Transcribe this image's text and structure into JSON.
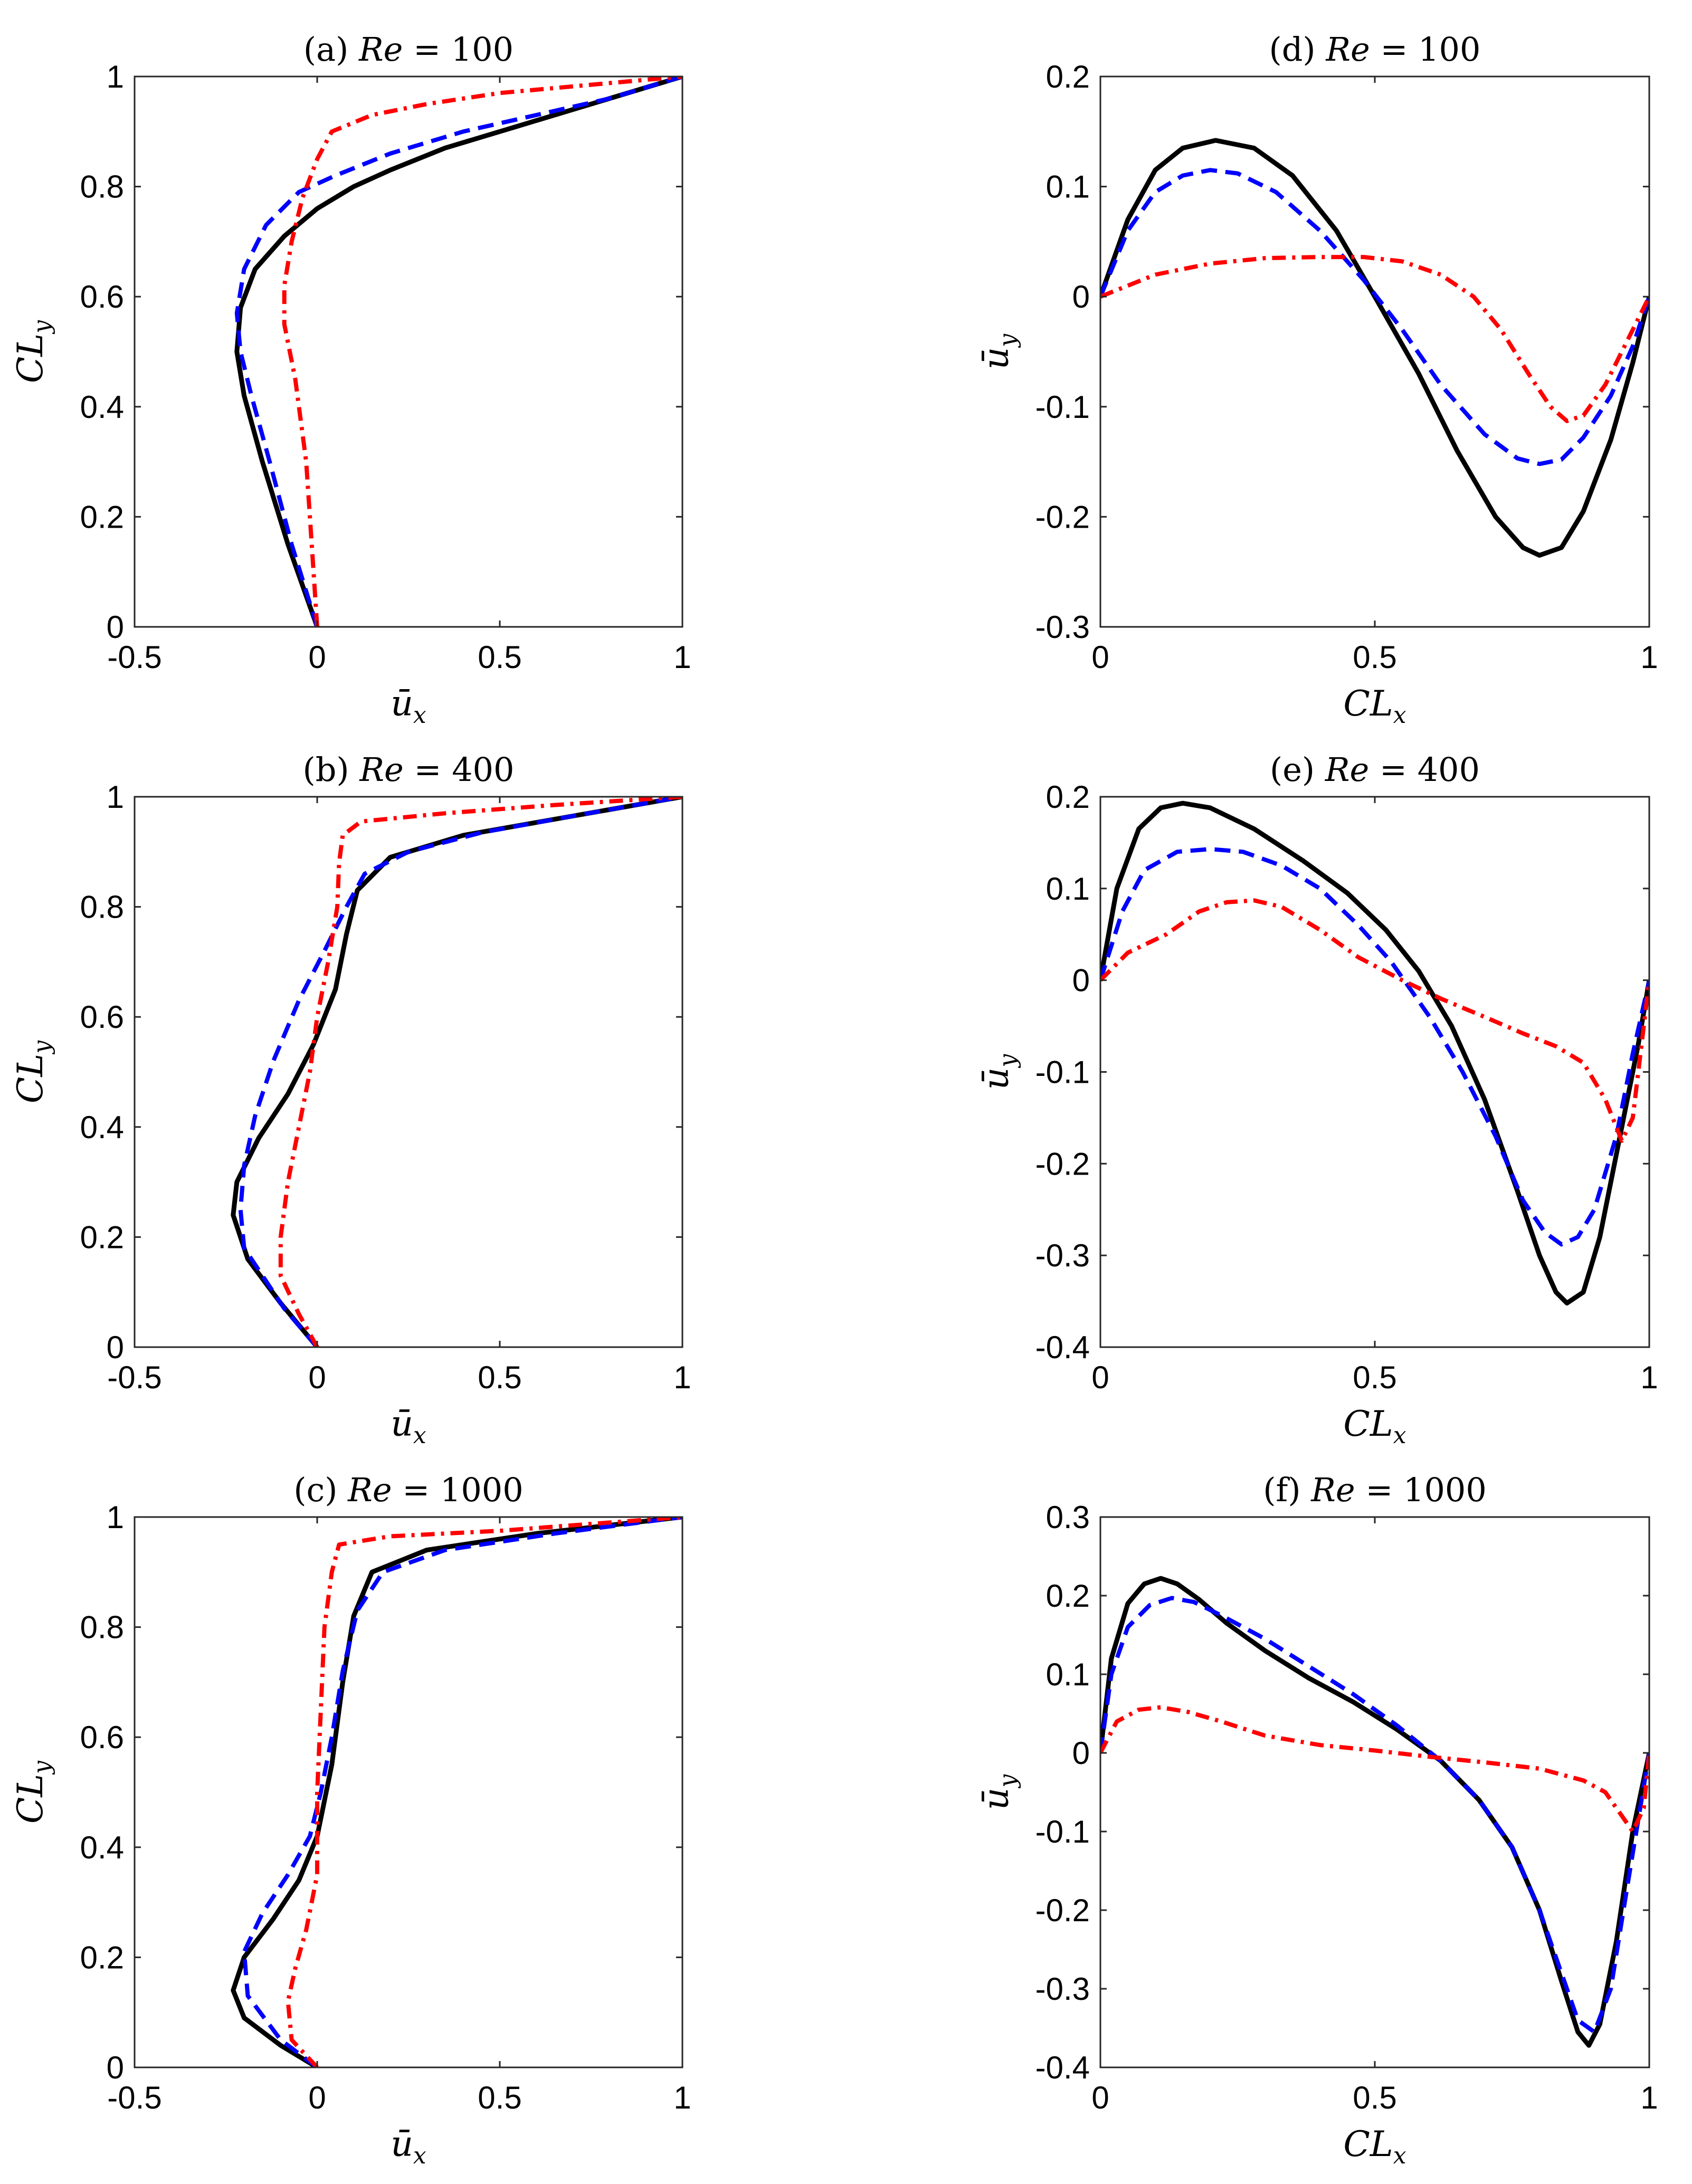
{
  "colors": {
    "solid": "#000000",
    "dashed": "#0000ff",
    "dashdot": "#ff0000",
    "axes": "#262626"
  },
  "chart_data": [
    {
      "id": "a",
      "type": "line",
      "title_prefix": "(a)",
      "title_var": "Re",
      "title_value": "= 100",
      "xlabel": "ū",
      "xlabel_sub": "x",
      "ylabel": "CL",
      "ylabel_sub": "y",
      "xlim": [
        -0.5,
        1
      ],
      "ylim": [
        0,
        1
      ],
      "xticks": [
        -0.5,
        0,
        0.5,
        1
      ],
      "xtick_labels": [
        "-0.5",
        "0",
        "0.5",
        "1"
      ],
      "yticks": [
        0,
        0.2,
        0.4,
        0.6,
        0.8,
        1
      ],
      "ytick_labels": [
        "0",
        "0.2",
        "0.4",
        "0.6",
        "0.8",
        "1"
      ],
      "series": [
        {
          "name": "solid",
          "style": "solid",
          "x": [
            0,
            -0.08,
            -0.15,
            -0.2,
            -0.22,
            -0.21,
            -0.17,
            -0.09,
            0,
            0.1,
            0.2,
            0.35,
            0.55,
            0.75,
            1
          ],
          "y": [
            0,
            0.15,
            0.3,
            0.42,
            0.5,
            0.58,
            0.65,
            0.71,
            0.76,
            0.8,
            0.83,
            0.87,
            0.91,
            0.95,
            1
          ]
        },
        {
          "name": "dashed",
          "style": "dashed",
          "x": [
            0,
            -0.07,
            -0.13,
            -0.18,
            -0.21,
            -0.22,
            -0.2,
            -0.14,
            -0.05,
            0.05,
            0.2,
            0.4,
            0.6,
            0.8,
            1
          ],
          "y": [
            0,
            0.15,
            0.3,
            0.42,
            0.5,
            0.57,
            0.65,
            0.73,
            0.79,
            0.82,
            0.86,
            0.9,
            0.93,
            0.96,
            1
          ]
        },
        {
          "name": "dashdot",
          "style": "dashdot",
          "x": [
            0,
            -0.01,
            -0.03,
            -0.06,
            -0.09,
            -0.09,
            -0.07,
            -0.04,
            0,
            0.04,
            0.15,
            0.3,
            0.5,
            0.75,
            1
          ],
          "y": [
            0,
            0.1,
            0.3,
            0.45,
            0.55,
            0.62,
            0.7,
            0.78,
            0.85,
            0.9,
            0.93,
            0.95,
            0.97,
            0.985,
            1
          ]
        }
      ]
    },
    {
      "id": "b",
      "type": "line",
      "title_prefix": "(b)",
      "title_var": "Re",
      "title_value": "= 400",
      "xlabel": "ū",
      "xlabel_sub": "x",
      "ylabel": "CL",
      "ylabel_sub": "y",
      "xlim": [
        -0.5,
        1
      ],
      "ylim": [
        0,
        1
      ],
      "xticks": [
        -0.5,
        0,
        0.5,
        1
      ],
      "xtick_labels": [
        "-0.5",
        "0",
        "0.5",
        "1"
      ],
      "yticks": [
        0,
        0.2,
        0.4,
        0.6,
        0.8,
        1
      ],
      "ytick_labels": [
        "0",
        "0.2",
        "0.4",
        "0.6",
        "0.8",
        "1"
      ],
      "series": [
        {
          "name": "solid",
          "style": "solid",
          "x": [
            0,
            -0.1,
            -0.19,
            -0.23,
            -0.22,
            -0.16,
            -0.08,
            -0.01,
            0.05,
            0.08,
            0.11,
            0.2,
            0.4,
            0.7,
            1
          ],
          "y": [
            0,
            0.08,
            0.16,
            0.24,
            0.3,
            0.38,
            0.46,
            0.55,
            0.65,
            0.75,
            0.83,
            0.89,
            0.93,
            0.965,
            1
          ]
        },
        {
          "name": "dashed",
          "style": "dashed",
          "x": [
            0,
            -0.09,
            -0.2,
            -0.21,
            -0.2,
            -0.17,
            -0.12,
            -0.05,
            0.02,
            0.08,
            0.13,
            0.25,
            0.45,
            0.7,
            1
          ],
          "y": [
            0,
            0.07,
            0.18,
            0.25,
            0.33,
            0.42,
            0.52,
            0.63,
            0.72,
            0.8,
            0.86,
            0.9,
            0.935,
            0.965,
            1
          ]
        },
        {
          "name": "dashdot",
          "style": "dashdot",
          "x": [
            0,
            -0.05,
            -0.1,
            -0.1,
            -0.08,
            -0.05,
            -0.02,
            0,
            0.03,
            0.055,
            0.06,
            0.07,
            0.12,
            0.35,
            0.65,
            1
          ],
          "y": [
            0,
            0.06,
            0.13,
            0.2,
            0.3,
            0.4,
            0.5,
            0.6,
            0.7,
            0.8,
            0.88,
            0.93,
            0.955,
            0.97,
            0.985,
            1
          ]
        }
      ]
    },
    {
      "id": "c",
      "type": "line",
      "title_prefix": "(c)",
      "title_var": "Re",
      "title_value": "= 1000",
      "xlabel": "ū",
      "xlabel_sub": "x",
      "ylabel": "CL",
      "ylabel_sub": "y",
      "xlim": [
        -0.5,
        1
      ],
      "ylim": [
        0,
        1
      ],
      "xticks": [
        -0.5,
        0,
        0.5,
        1
      ],
      "xtick_labels": [
        "-0.5",
        "0",
        "0.5",
        "1"
      ],
      "yticks": [
        0,
        0.2,
        0.4,
        0.6,
        0.8,
        1
      ],
      "ytick_labels": [
        "0",
        "0.2",
        "0.4",
        "0.6",
        "0.8",
        "1"
      ],
      "series": [
        {
          "name": "solid",
          "style": "solid",
          "x": [
            0,
            -0.1,
            -0.2,
            -0.23,
            -0.2,
            -0.12,
            -0.05,
            0,
            0.04,
            0.07,
            0.1,
            0.15,
            0.3,
            0.6,
            1
          ],
          "y": [
            0,
            0.04,
            0.09,
            0.14,
            0.2,
            0.27,
            0.34,
            0.42,
            0.55,
            0.7,
            0.82,
            0.9,
            0.94,
            0.97,
            1
          ]
        },
        {
          "name": "dashed",
          "style": "dashed",
          "x": [
            0,
            -0.1,
            -0.19,
            -0.2,
            -0.15,
            -0.08,
            -0.02,
            0.01,
            0.04,
            0.07,
            0.11,
            0.18,
            0.35,
            0.65,
            1
          ],
          "y": [
            0,
            0.05,
            0.13,
            0.21,
            0.28,
            0.35,
            0.42,
            0.5,
            0.6,
            0.72,
            0.83,
            0.9,
            0.94,
            0.97,
            1
          ]
        },
        {
          "name": "dashdot",
          "style": "dashdot",
          "x": [
            0,
            -0.07,
            -0.08,
            -0.06,
            -0.03,
            0,
            0,
            0.01,
            0.02,
            0.04,
            0.06,
            0.2,
            0.5,
            0.8,
            1
          ],
          "y": [
            0,
            0.05,
            0.12,
            0.18,
            0.25,
            0.35,
            0.5,
            0.65,
            0.8,
            0.9,
            0.95,
            0.965,
            0.975,
            0.99,
            1
          ]
        }
      ]
    },
    {
      "id": "d",
      "type": "line",
      "title_prefix": "(d)",
      "title_var": "Re",
      "title_value": "= 100",
      "xlabel": "CL",
      "xlabel_sub": "x",
      "ylabel": "ū",
      "ylabel_sub": "y",
      "xlim": [
        0,
        1
      ],
      "ylim": [
        -0.3,
        0.2
      ],
      "xticks": [
        0,
        0.5,
        1
      ],
      "xtick_labels": [
        "0",
        "0.5",
        "1"
      ],
      "yticks": [
        -0.3,
        -0.2,
        -0.1,
        0,
        0.1,
        0.2
      ],
      "ytick_labels": [
        "-0.3",
        "-0.2",
        "-0.1",
        "0",
        "0.1",
        "0.2"
      ],
      "series": [
        {
          "name": "solid",
          "style": "solid",
          "x": [
            0,
            0.05,
            0.1,
            0.15,
            0.21,
            0.28,
            0.35,
            0.43,
            0.5,
            0.58,
            0.65,
            0.72,
            0.77,
            0.8,
            0.84,
            0.88,
            0.93,
            0.97,
            1
          ],
          "y": [
            0,
            0.07,
            0.115,
            0.135,
            0.142,
            0.135,
            0.11,
            0.06,
            0,
            -0.07,
            -0.14,
            -0.2,
            -0.228,
            -0.235,
            -0.228,
            -0.195,
            -0.13,
            -0.06,
            0
          ]
        },
        {
          "name": "dashed",
          "style": "dashed",
          "x": [
            0,
            0.05,
            0.1,
            0.15,
            0.2,
            0.25,
            0.32,
            0.4,
            0.48,
            0.55,
            0.62,
            0.7,
            0.76,
            0.8,
            0.84,
            0.88,
            0.93,
            0.97,
            1
          ],
          "y": [
            0,
            0.06,
            0.095,
            0.11,
            0.115,
            0.112,
            0.095,
            0.06,
            0.015,
            -0.03,
            -0.08,
            -0.125,
            -0.147,
            -0.152,
            -0.148,
            -0.128,
            -0.09,
            -0.045,
            0
          ]
        },
        {
          "name": "dashdot",
          "style": "dashdot",
          "x": [
            0,
            0.1,
            0.2,
            0.3,
            0.4,
            0.48,
            0.55,
            0.62,
            0.68,
            0.73,
            0.78,
            0.82,
            0.85,
            0.88,
            0.92,
            0.96,
            1
          ],
          "y": [
            0,
            0.02,
            0.03,
            0.035,
            0.036,
            0.036,
            0.032,
            0.02,
            0,
            -0.03,
            -0.07,
            -0.1,
            -0.113,
            -0.108,
            -0.08,
            -0.04,
            0
          ]
        }
      ]
    },
    {
      "id": "e",
      "type": "line",
      "title_prefix": "(e)",
      "title_var": "Re",
      "title_value": "= 400",
      "xlabel": "CL",
      "xlabel_sub": "x",
      "ylabel": "ū",
      "ylabel_sub": "y",
      "xlim": [
        0,
        1
      ],
      "ylim": [
        -0.4,
        0.2
      ],
      "xticks": [
        0,
        0.5,
        1
      ],
      "xtick_labels": [
        "0",
        "0.5",
        "1"
      ],
      "yticks": [
        -0.4,
        -0.3,
        -0.2,
        -0.1,
        0,
        0.1,
        0.2
      ],
      "ytick_labels": [
        "-0.4",
        "-0.3",
        "-0.2",
        "-0.1",
        "0",
        "0.1",
        "0.2"
      ],
      "series": [
        {
          "name": "solid",
          "style": "solid",
          "x": [
            0,
            0.03,
            0.07,
            0.11,
            0.15,
            0.2,
            0.28,
            0.37,
            0.45,
            0.52,
            0.58,
            0.64,
            0.7,
            0.76,
            0.8,
            0.83,
            0.85,
            0.88,
            0.91,
            0.95,
            0.98,
            1
          ],
          "y": [
            0,
            0.1,
            0.165,
            0.188,
            0.193,
            0.188,
            0.165,
            0.13,
            0.095,
            0.055,
            0.01,
            -0.05,
            -0.13,
            -0.23,
            -0.3,
            -0.34,
            -0.352,
            -0.34,
            -0.28,
            -0.16,
            -0.07,
            0
          ]
        },
        {
          "name": "dashed",
          "style": "dashed",
          "x": [
            0,
            0.04,
            0.08,
            0.14,
            0.2,
            0.26,
            0.33,
            0.4,
            0.47,
            0.53,
            0.6,
            0.66,
            0.72,
            0.77,
            0.81,
            0.84,
            0.87,
            0.9,
            0.94,
            0.97,
            1
          ],
          "y": [
            0,
            0.075,
            0.12,
            0.14,
            0.143,
            0.14,
            0.125,
            0.1,
            0.06,
            0.02,
            -0.04,
            -0.1,
            -0.17,
            -0.24,
            -0.275,
            -0.288,
            -0.28,
            -0.25,
            -0.17,
            -0.08,
            0
          ]
        },
        {
          "name": "dashdot",
          "style": "dashdot",
          "x": [
            0,
            0.05,
            0.12,
            0.18,
            0.23,
            0.28,
            0.33,
            0.4,
            0.47,
            0.55,
            0.62,
            0.7,
            0.77,
            0.83,
            0.88,
            0.92,
            0.95,
            0.97,
            0.99,
            1
          ],
          "y": [
            0,
            0.03,
            0.05,
            0.075,
            0.085,
            0.087,
            0.08,
            0.055,
            0.025,
            0,
            -0.02,
            -0.04,
            -0.058,
            -0.072,
            -0.09,
            -0.13,
            -0.175,
            -0.15,
            -0.05,
            0
          ]
        }
      ]
    },
    {
      "id": "f",
      "type": "line",
      "title_prefix": "(f)",
      "title_var": "Re",
      "title_value": "= 1000",
      "xlabel": "CL",
      "xlabel_sub": "x",
      "ylabel": "ū",
      "ylabel_sub": "y",
      "xlim": [
        0,
        1
      ],
      "ylim": [
        -0.4,
        0.3
      ],
      "xticks": [
        0,
        0.5,
        1
      ],
      "xtick_labels": [
        "0",
        "0.5",
        "1"
      ],
      "yticks": [
        -0.4,
        -0.3,
        -0.2,
        -0.1,
        0,
        0.1,
        0.2,
        0.3
      ],
      "ytick_labels": [
        "-0.4",
        "-0.3",
        "-0.2",
        "-0.1",
        "0",
        "0.1",
        "0.2",
        "0.3"
      ],
      "series": [
        {
          "name": "solid",
          "style": "solid",
          "x": [
            0,
            0.02,
            0.05,
            0.08,
            0.11,
            0.14,
            0.18,
            0.23,
            0.3,
            0.38,
            0.46,
            0.54,
            0.62,
            0.69,
            0.75,
            0.8,
            0.84,
            0.87,
            0.89,
            0.91,
            0.94,
            0.97,
            1
          ],
          "y": [
            0,
            0.12,
            0.19,
            0.215,
            0.222,
            0.215,
            0.195,
            0.165,
            0.13,
            0.095,
            0.065,
            0.03,
            -0.01,
            -0.06,
            -0.12,
            -0.2,
            -0.29,
            -0.355,
            -0.372,
            -0.345,
            -0.24,
            -0.1,
            0
          ]
        },
        {
          "name": "dashed",
          "style": "dashed",
          "x": [
            0,
            0.02,
            0.05,
            0.09,
            0.13,
            0.17,
            0.22,
            0.3,
            0.38,
            0.46,
            0.54,
            0.62,
            0.69,
            0.75,
            0.8,
            0.84,
            0.87,
            0.9,
            0.93,
            0.96,
            1
          ],
          "y": [
            0,
            0.1,
            0.16,
            0.188,
            0.197,
            0.192,
            0.175,
            0.145,
            0.11,
            0.075,
            0.035,
            -0.01,
            -0.06,
            -0.12,
            -0.2,
            -0.28,
            -0.34,
            -0.355,
            -0.3,
            -0.17,
            0
          ]
        },
        {
          "name": "dashdot",
          "style": "dashdot",
          "x": [
            0,
            0.03,
            0.07,
            0.11,
            0.16,
            0.22,
            0.3,
            0.4,
            0.5,
            0.6,
            0.7,
            0.8,
            0.88,
            0.92,
            0.95,
            0.97,
            0.99,
            1
          ],
          "y": [
            0,
            0.04,
            0.055,
            0.058,
            0.052,
            0.04,
            0.022,
            0.01,
            0.003,
            -0.005,
            -0.012,
            -0.02,
            -0.035,
            -0.05,
            -0.08,
            -0.1,
            -0.07,
            0
          ]
        }
      ]
    }
  ]
}
